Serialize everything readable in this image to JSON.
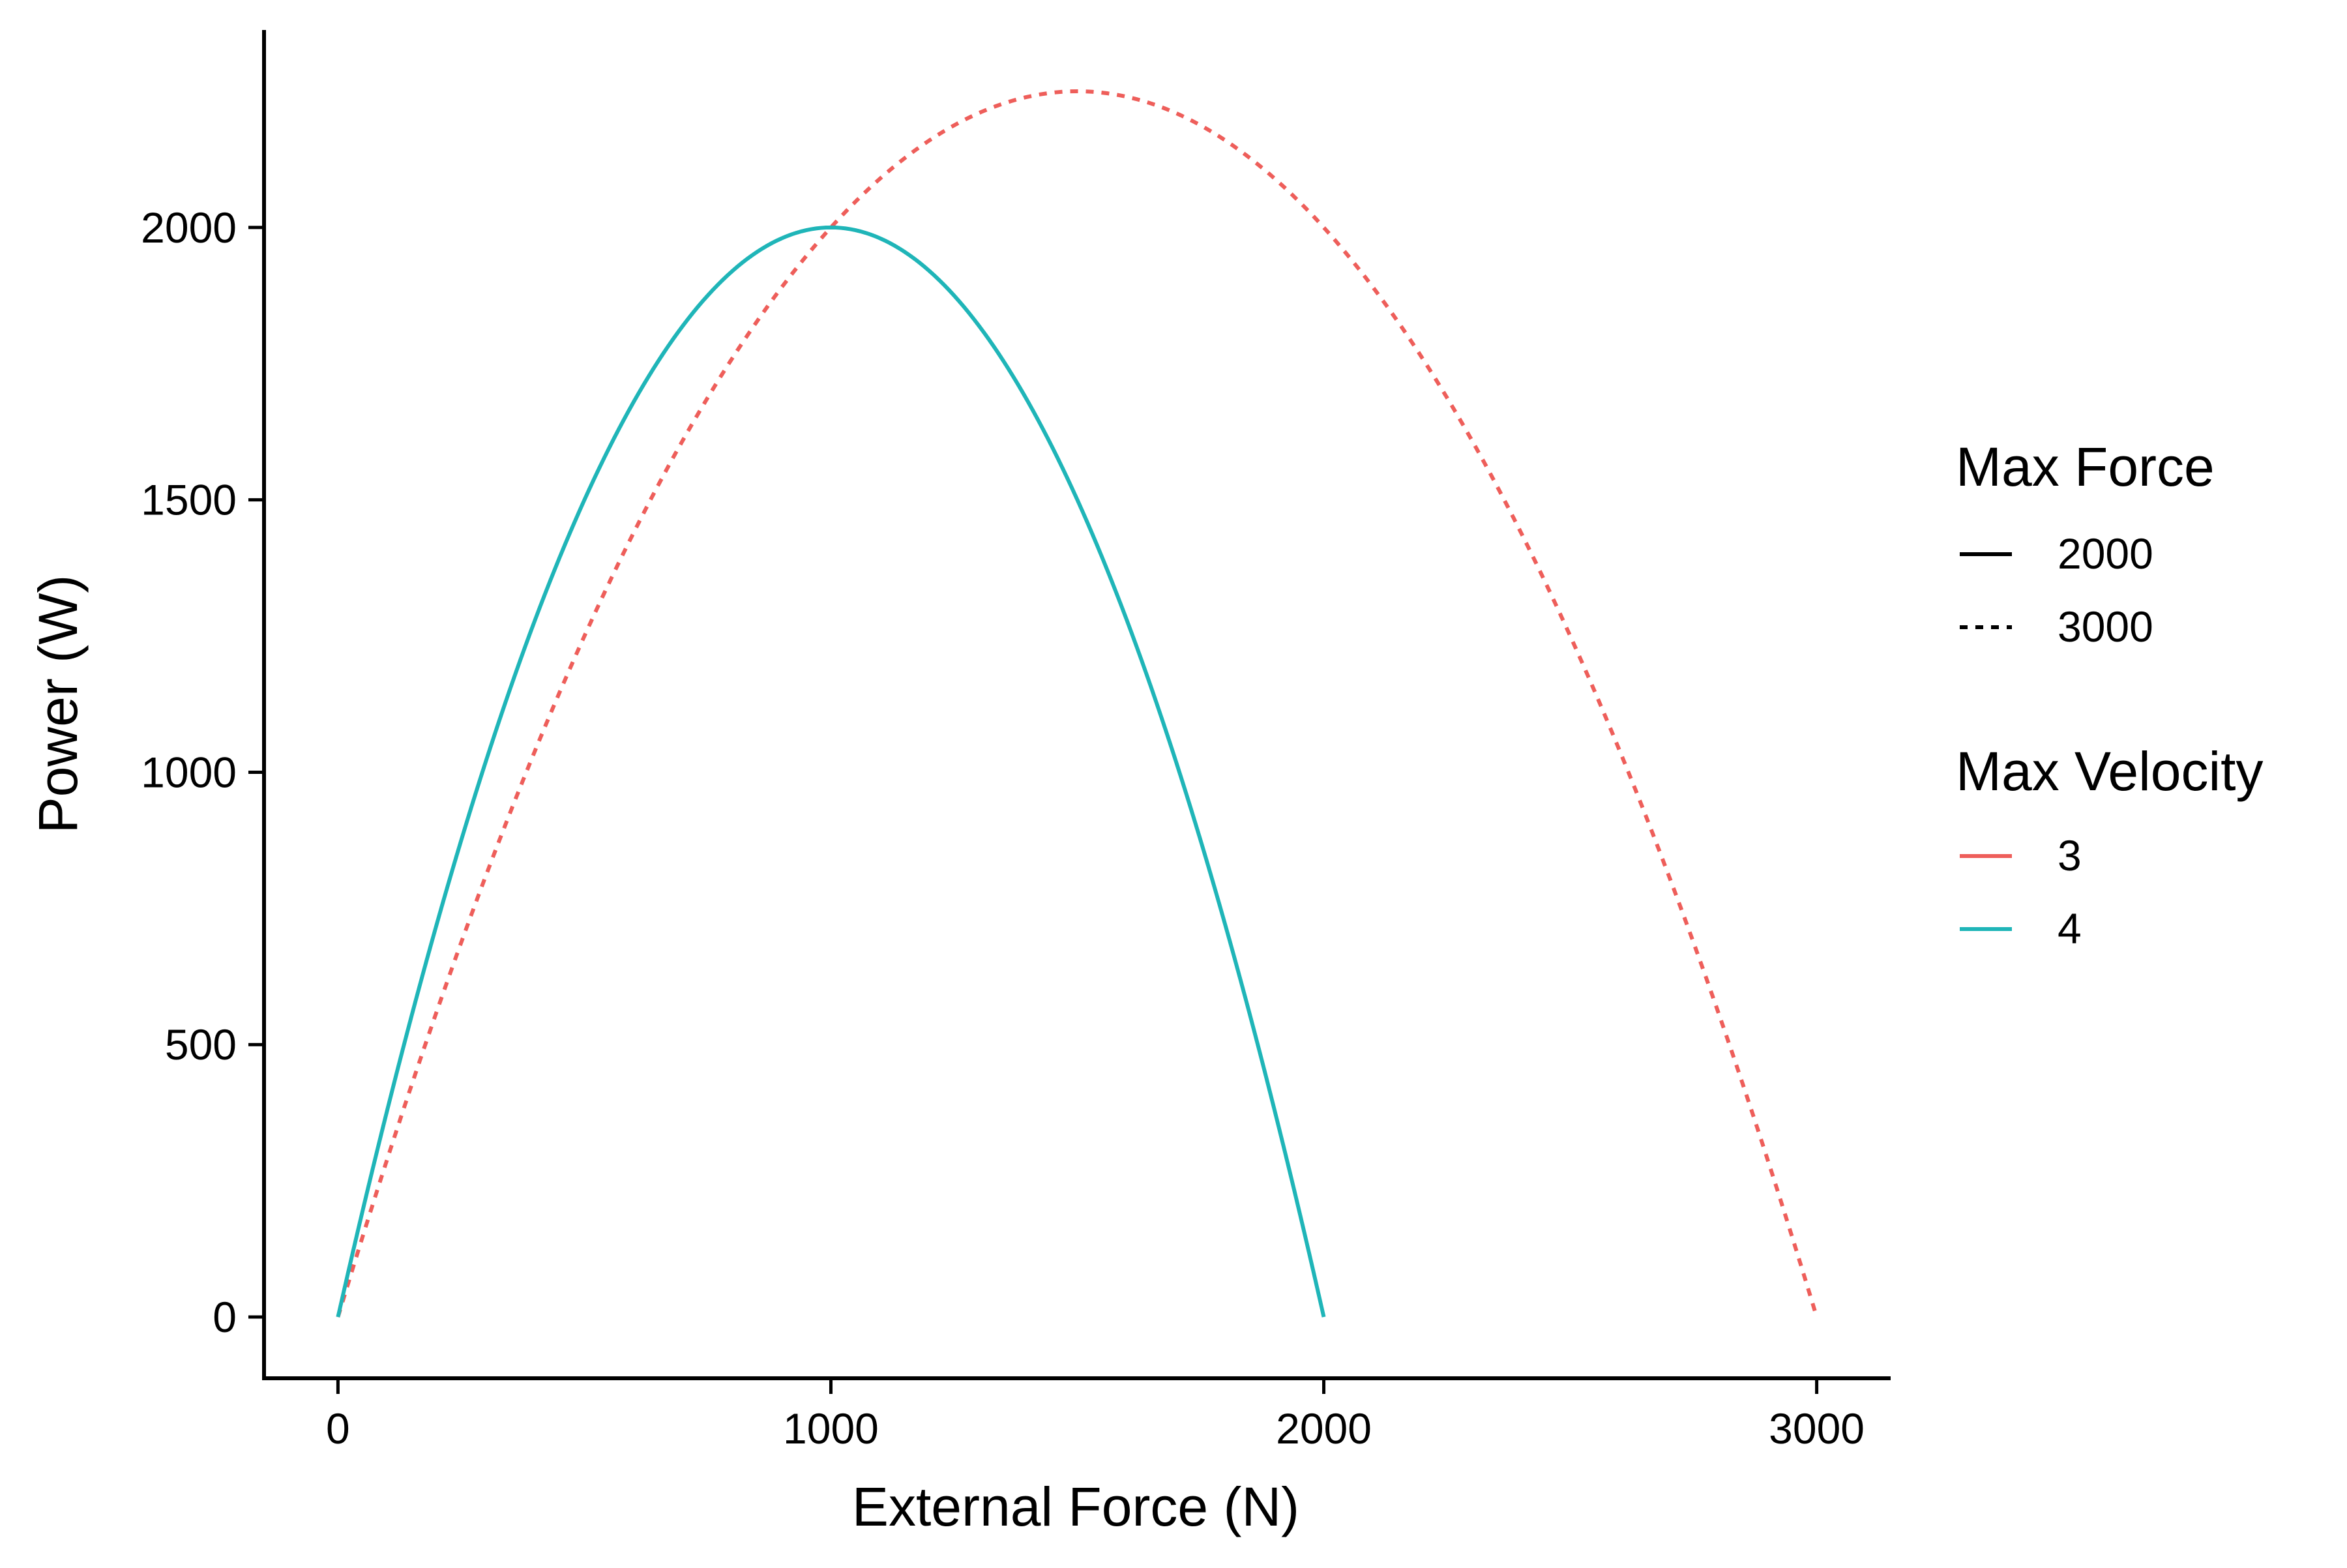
{
  "chart_data": {
    "type": "line",
    "xlabel": "External Force (N)",
    "ylabel": "Power (W)",
    "xlim": [
      -150,
      3150
    ],
    "ylim": [
      -112.5,
      2362.5
    ],
    "x_ticks": [
      0,
      1000,
      2000,
      3000
    ],
    "x_tick_labels": [
      "0",
      "1000",
      "2000",
      "3000"
    ],
    "y_ticks": [
      0,
      500,
      1000,
      1500,
      2000
    ],
    "y_tick_labels": [
      "0",
      "500",
      "1000",
      "1500",
      "2000"
    ],
    "grid": false,
    "legend_position": "right",
    "series": [
      {
        "max_force": 2000,
        "max_velocity": 4,
        "color": "#1FB5B8",
        "linestyle": "solid",
        "x": [
          0,
          100,
          200,
          300,
          400,
          500,
          600,
          700,
          800,
          900,
          1000,
          1100,
          1200,
          1300,
          1400,
          1500,
          1600,
          1700,
          1800,
          1900,
          2000
        ],
        "y": [
          0,
          380,
          720,
          1020,
          1280,
          1500,
          1680,
          1820,
          1920,
          1980,
          2000,
          1980,
          1920,
          1820,
          1680,
          1500,
          1280,
          1020,
          720,
          380,
          0
        ]
      },
      {
        "max_force": 3000,
        "max_velocity": 3,
        "color": "#EE5E5A",
        "linestyle": "dotted",
        "x": [
          0,
          150,
          300,
          450,
          600,
          750,
          900,
          1050,
          1200,
          1350,
          1500,
          1650,
          1800,
          1950,
          2100,
          2250,
          2400,
          2550,
          2700,
          2850,
          3000
        ],
        "y": [
          0,
          427.5,
          810,
          1147.5,
          1440,
          1687.5,
          1890,
          2047.5,
          2160,
          2227.5,
          2250,
          2227.5,
          2160,
          2047.5,
          1890,
          1687.5,
          1440,
          1147.5,
          810,
          427.5,
          0
        ]
      }
    ],
    "legends": [
      {
        "title": "Max Force",
        "entries": [
          {
            "label": "2000",
            "linestyle": "solid",
            "color": "#000000"
          },
          {
            "label": "3000",
            "linestyle": "dotted",
            "color": "#000000"
          }
        ]
      },
      {
        "title": "Max Velocity",
        "entries": [
          {
            "label": "3",
            "linestyle": "solid",
            "color": "#EE5E5A"
          },
          {
            "label": "4",
            "linestyle": "solid",
            "color": "#1FB5B8"
          }
        ]
      }
    ]
  }
}
